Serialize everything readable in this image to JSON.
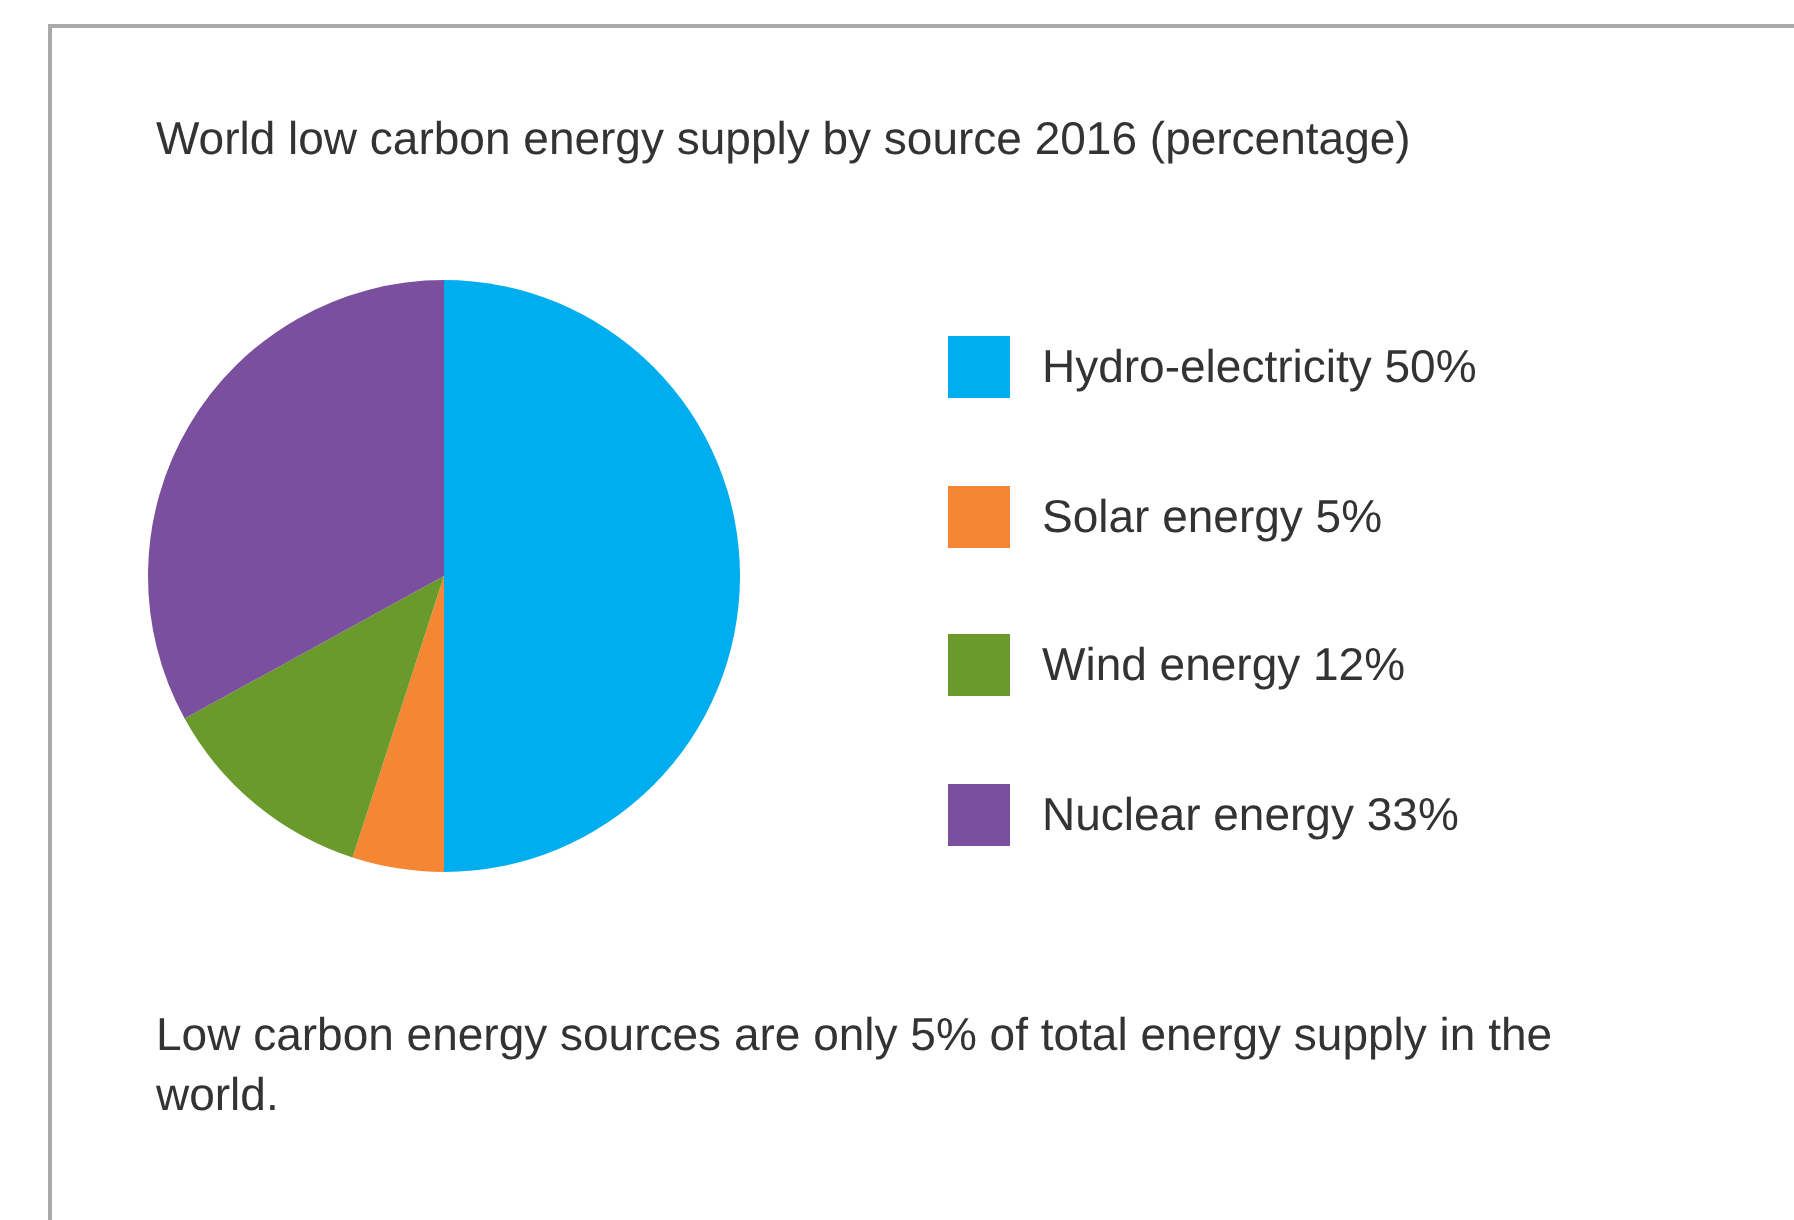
{
  "chart_data": {
    "type": "pie",
    "title": "World low carbon energy supply by source 2016 (percentage)",
    "categories": [
      "Hydro-electricity",
      "Solar energy",
      "Wind energy",
      "Nuclear energy"
    ],
    "values": [
      50,
      5,
      12,
      33
    ],
    "value_labels": [
      "50%",
      "5%",
      "12%",
      "33%"
    ],
    "colors": [
      "#00aeef",
      "#f58634",
      "#6a9a2c",
      "#7a4f9e"
    ],
    "legend": "right",
    "annotations": [
      "Low carbon energy sources are only 5% of total energy supply in the world."
    ]
  }
}
